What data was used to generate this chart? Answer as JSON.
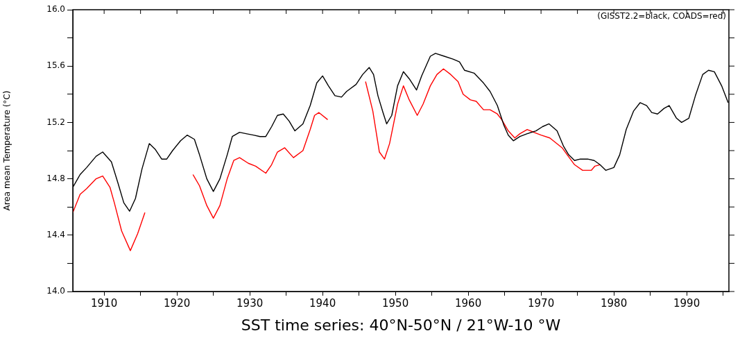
{
  "chart_data": {
    "type": "line",
    "xlabel": "SST time series: 40°N-50°N / 21°W-10 °W",
    "ylabel": "Area mean Temperature (°C)",
    "annotations": [
      "(GISST2.2=black, COADS=red)"
    ],
    "xlim": [
      1905.7,
      1995.8
    ],
    "xticks": [
      1910,
      {
        "value": 1915,
        "label": null
      },
      1920,
      {
        "value": 1925,
        "label": null
      },
      1930,
      {
        "value": 1935,
        "label": null
      },
      1940,
      {
        "value": 1945,
        "label": null
      },
      1950,
      {
        "value": 1955,
        "label": null
      },
      1960,
      {
        "value": 1965,
        "label": null
      },
      1970,
      {
        "value": 1975,
        "label": null
      },
      1980,
      {
        "value": 1985,
        "label": null
      },
      1990,
      {
        "value": 1995,
        "label": null
      }
    ],
    "ylim": [
      14.0,
      16.0
    ],
    "yticks": [
      {
        "value": 14.0,
        "label": "14.0"
      },
      {
        "value": 14.2,
        "label": null
      },
      {
        "value": 14.4,
        "label": "14.4"
      },
      {
        "value": 14.6,
        "label": null
      },
      {
        "value": 14.8,
        "label": "14.8"
      },
      {
        "value": 15.0,
        "label": null
      },
      {
        "value": 15.2,
        "label": "15.2"
      },
      {
        "value": 15.4,
        "label": null
      },
      {
        "value": 15.6,
        "label": "15.6"
      },
      {
        "value": 15.8,
        "label": null
      },
      {
        "value": 16.0,
        "label": "16.0"
      }
    ],
    "grid": false,
    "legend": false,
    "marker": "none",
    "line_style": "solid",
    "series": [
      {
        "color": "#000000",
        "x": [
          1905.7,
          1906.7,
          1907.6,
          1908.9,
          1909.8,
          1911.0,
          1911.9,
          1912.7,
          1913.5,
          1914.3,
          1915.2,
          1916.2,
          1917.0,
          1917.9,
          1918.6,
          1919.4,
          1920.5,
          1921.4,
          1922.4,
          1923.1,
          1924.1,
          1925.0,
          1925.9,
          1926.9,
          1927.6,
          1928.6,
          1929.5,
          1930.5,
          1931.4,
          1932.2,
          1933.0,
          1933.8,
          1934.6,
          1935.4,
          1936.2,
          1937.3,
          1938.3,
          1939.2,
          1940.0,
          1940.8,
          1941.7,
          1942.6,
          1943.3,
          1944.6,
          1945.5,
          1946.4,
          1947.0,
          1947.6,
          1948.3,
          1948.8,
          1949.5,
          1950.3,
          1951.1,
          1951.9,
          1952.9,
          1953.6,
          1954.8,
          1955.5,
          1956.7,
          1957.9,
          1958.8,
          1959.5,
          1960.8,
          1962.1,
          1963.0,
          1964.0,
          1964.9,
          1965.5,
          1966.2,
          1967.1,
          1968.1,
          1969.3,
          1970.2,
          1971.1,
          1972.2,
          1973.1,
          1973.8,
          1974.6,
          1975.4,
          1976.4,
          1977.3,
          1978.1,
          1978.9,
          1980.0,
          1980.8,
          1981.7,
          1982.7,
          1983.6,
          1984.5,
          1985.2,
          1986.0,
          1986.9,
          1987.6,
          1988.6,
          1989.3,
          1990.3,
          1991.2,
          1992.2,
          1993.0,
          1993.8,
          1994.8,
          1995.7
        ],
        "values": [
          14.74,
          14.83,
          14.88,
          14.96,
          14.99,
          14.92,
          14.77,
          14.63,
          14.57,
          14.66,
          14.87,
          15.05,
          15.01,
          14.94,
          14.94,
          15.0,
          15.07,
          15.11,
          15.08,
          14.97,
          14.8,
          14.71,
          14.8,
          14.97,
          15.1,
          15.13,
          15.12,
          15.11,
          15.1,
          15.1,
          15.17,
          15.25,
          15.26,
          15.21,
          15.14,
          15.19,
          15.32,
          15.48,
          15.53,
          15.46,
          15.39,
          15.38,
          15.42,
          15.47,
          15.54,
          15.59,
          15.54,
          15.39,
          15.27,
          15.19,
          15.25,
          15.46,
          15.56,
          15.51,
          15.43,
          15.53,
          15.67,
          15.69,
          15.67,
          15.65,
          15.63,
          15.57,
          15.55,
          15.48,
          15.42,
          15.32,
          15.18,
          15.11,
          15.07,
          15.1,
          15.12,
          15.14,
          15.17,
          15.19,
          15.14,
          15.03,
          14.97,
          14.93,
          14.94,
          14.94,
          14.93,
          14.9,
          14.86,
          14.88,
          14.97,
          15.15,
          15.28,
          15.34,
          15.32,
          15.27,
          15.26,
          15.3,
          15.32,
          15.23,
          15.2,
          15.23,
          15.39,
          15.54,
          15.57,
          15.56,
          15.46,
          15.34
        ]
      },
      {
        "color": "#ff0000",
        "x": [
          1905.7,
          1906.7,
          1907.6,
          1908.9,
          1909.8,
          1910.8,
          1911.4,
          1912.4,
          1913.6,
          1914.6,
          1915.6,
          1919.0,
          1922.2,
          1923.1,
          1924.1,
          1925.0,
          1925.9,
          1926.9,
          1927.8,
          1928.6,
          1929.8,
          1930.8,
          1932.2,
          1933.0,
          1933.8,
          1934.8,
          1936.0,
          1937.3,
          1938.3,
          1938.9,
          1939.5,
          1940.7,
          1943.0,
          1945.9,
          1946.9,
          1947.8,
          1948.5,
          1949.2,
          1950.3,
          1951.1,
          1951.9,
          1953.0,
          1953.8,
          1954.8,
          1955.7,
          1956.6,
          1957.6,
          1958.6,
          1959.3,
          1960.3,
          1961.1,
          1962.1,
          1963.0,
          1964.0,
          1964.6,
          1965.5,
          1966.4,
          1967.1,
          1968.1,
          1969.0,
          1970.0,
          1971.2,
          1972.9,
          1973.6,
          1974.6,
          1975.7,
          1976.9,
          1977.4,
          1978.1
        ],
        "values": [
          14.56,
          14.69,
          14.73,
          14.8,
          14.82,
          14.74,
          14.63,
          14.43,
          14.29,
          14.41,
          14.56,
          null,
          14.83,
          14.75,
          14.61,
          14.52,
          14.61,
          14.8,
          14.93,
          14.95,
          14.91,
          14.89,
          14.84,
          14.9,
          14.99,
          15.02,
          14.95,
          15.0,
          15.15,
          15.25,
          15.27,
          15.22,
          null,
          15.49,
          15.28,
          14.99,
          14.94,
          15.05,
          15.33,
          15.46,
          15.36,
          15.25,
          15.33,
          15.46,
          15.54,
          15.58,
          15.54,
          15.49,
          15.4,
          15.36,
          15.35,
          15.29,
          15.29,
          15.26,
          15.22,
          15.14,
          15.09,
          15.12,
          15.15,
          15.13,
          15.11,
          15.09,
          15.02,
          14.97,
          14.9,
          14.86,
          14.86,
          14.89,
          14.9
        ]
      }
    ]
  }
}
